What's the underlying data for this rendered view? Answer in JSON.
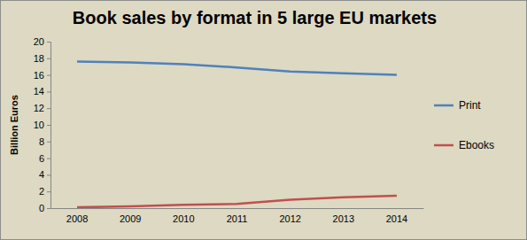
{
  "chart_data": {
    "type": "line",
    "title": "Book sales by format in 5 large EU markets",
    "y_label": "Billion Euros",
    "categories": [
      "2008",
      "2009",
      "2010",
      "2011",
      "2012",
      "2013",
      "2014"
    ],
    "series": [
      {
        "name": "Print",
        "color": "#4f81bd",
        "values": [
          17.6,
          17.5,
          17.3,
          16.9,
          16.4,
          16.2,
          16.0
        ]
      },
      {
        "name": "Ebooks",
        "color": "#c0504d",
        "values": [
          0.1,
          0.2,
          0.4,
          0.5,
          1.0,
          1.3,
          1.5
        ]
      }
    ],
    "ylim": [
      0,
      20
    ],
    "yticks": [
      0,
      2,
      4,
      6,
      8,
      10,
      12,
      14,
      16,
      18,
      20
    ],
    "grid": false,
    "legend": "right"
  }
}
